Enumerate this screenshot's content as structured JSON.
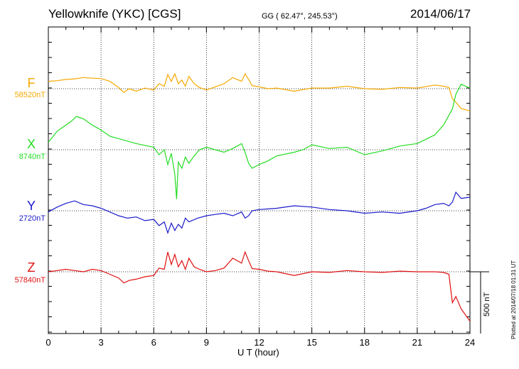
{
  "header": {
    "title": "Yellowknife (YKC)  [CGS]",
    "coords": "GG ( 62.47°, 245.53°)",
    "date": "2014/06/17"
  },
  "plotted_note": "Plotted at 2014/07/18 01:31  UT",
  "chart_data": {
    "type": "line",
    "xlabel": "U T (hour)",
    "xlim": [
      0,
      24
    ],
    "xticks": [
      "0",
      "3",
      "6",
      "9",
      "12",
      "15",
      "18",
      "21",
      "24"
    ],
    "ylabel": "",
    "scale_bar": "500 nT",
    "grid": true,
    "series": [
      {
        "name": "F",
        "baseline": "58520nT",
        "color": "#f5a800",
        "x": [
          0,
          0.5,
          1,
          1.5,
          2,
          2.5,
          3,
          3.5,
          4,
          4.3,
          4.6,
          5,
          5.5,
          6,
          6.3,
          6.6,
          6.8,
          7,
          7.2,
          7.4,
          7.6,
          7.8,
          8,
          8.3,
          8.6,
          9,
          9.5,
          10,
          10.5,
          11,
          11.2,
          11.4,
          11.6,
          12,
          12.5,
          13,
          14,
          15,
          16,
          17,
          18,
          19,
          20,
          21,
          22,
          22.5,
          22.8,
          23,
          23.2,
          23.5,
          24
        ],
        "values": [
          60,
          65,
          75,
          80,
          90,
          85,
          82,
          60,
          10,
          -30,
          0,
          -20,
          5,
          -10,
          40,
          20,
          115,
          60,
          120,
          40,
          70,
          20,
          100,
          40,
          10,
          -10,
          15,
          40,
          90,
          60,
          120,
          75,
          25,
          15,
          0,
          5,
          -20,
          5,
          5,
          20,
          0,
          -5,
          10,
          5,
          30,
          20,
          10,
          -80,
          -110,
          -160,
          -180
        ]
      },
      {
        "name": "X",
        "baseline": "8740nT",
        "color": "#22dd22",
        "x": [
          0,
          0.5,
          1,
          1.3,
          1.6,
          2,
          2.5,
          3,
          3.5,
          4,
          5,
          6,
          6.3,
          6.6,
          6.8,
          7,
          7.2,
          7.3,
          7.4,
          7.6,
          7.8,
          8,
          8.3,
          8.6,
          9,
          9.5,
          10,
          10.5,
          11,
          11.2,
          11.4,
          11.6,
          12,
          12.5,
          13,
          14,
          14.5,
          15,
          16,
          17,
          18,
          19,
          20,
          21,
          22,
          22.5,
          23,
          23.2,
          23.5,
          24
        ],
        "values": [
          60,
          150,
          200,
          230,
          270,
          250,
          200,
          160,
          110,
          90,
          50,
          20,
          -40,
          0,
          -120,
          -30,
          -200,
          -400,
          -100,
          -150,
          -60,
          -110,
          -50,
          0,
          20,
          0,
          -20,
          10,
          50,
          -20,
          -110,
          -150,
          -120,
          -90,
          -50,
          -20,
          0,
          40,
          10,
          20,
          -40,
          -10,
          30,
          50,
          120,
          200,
          330,
          450,
          530,
          500
        ]
      },
      {
        "name": "Y",
        "baseline": "2720nT",
        "color": "#1a1acc",
        "x": [
          0,
          0.5,
          1,
          1.5,
          2,
          2.5,
          3,
          3.5,
          4,
          4.5,
          5,
          5.5,
          6,
          6.3,
          6.6,
          6.8,
          7,
          7.2,
          7.4,
          7.6,
          7.8,
          8,
          8.5,
          9,
          9.5,
          10,
          10.5,
          11,
          11.2,
          11.4,
          11.6,
          12,
          13,
          14,
          15,
          16,
          17,
          18,
          19,
          20,
          21,
          21.5,
          22,
          22.5,
          22.8,
          23,
          23.2,
          23.5,
          24
        ],
        "values": [
          -10,
          30,
          60,
          80,
          50,
          40,
          20,
          -10,
          -40,
          -60,
          -50,
          -80,
          -70,
          -120,
          -90,
          -180,
          -100,
          -160,
          -110,
          -140,
          -60,
          -90,
          -60,
          -40,
          -30,
          -20,
          -40,
          -10,
          -60,
          -40,
          0,
          10,
          20,
          40,
          30,
          10,
          0,
          -20,
          -10,
          -20,
          0,
          20,
          50,
          60,
          40,
          70,
          150,
          100,
          110
        ]
      },
      {
        "name": "Z",
        "baseline": "57840nT",
        "color": "#e01010",
        "x": [
          0,
          0.5,
          1,
          1.5,
          2,
          2.5,
          3,
          3.5,
          4,
          4.3,
          4.6,
          5,
          5.5,
          6,
          6.3,
          6.6,
          6.8,
          7,
          7.2,
          7.4,
          7.6,
          7.8,
          8,
          8.3,
          8.6,
          9,
          9.5,
          10,
          10.5,
          11,
          11.2,
          11.4,
          11.6,
          12,
          12.5,
          13,
          14,
          15,
          16,
          17,
          18,
          19,
          20,
          21,
          22,
          22.5,
          22.8,
          23,
          23.2,
          23.5,
          24
        ],
        "values": [
          0,
          10,
          20,
          10,
          0,
          20,
          10,
          -20,
          -50,
          -90,
          -70,
          -60,
          -40,
          -30,
          30,
          20,
          160,
          60,
          140,
          40,
          90,
          20,
          110,
          40,
          20,
          0,
          10,
          30,
          110,
          70,
          160,
          90,
          25,
          20,
          5,
          0,
          -30,
          0,
          -5,
          10,
          0,
          -5,
          5,
          0,
          0,
          -5,
          -20,
          -250,
          -200,
          -300,
          -400
        ]
      }
    ]
  }
}
